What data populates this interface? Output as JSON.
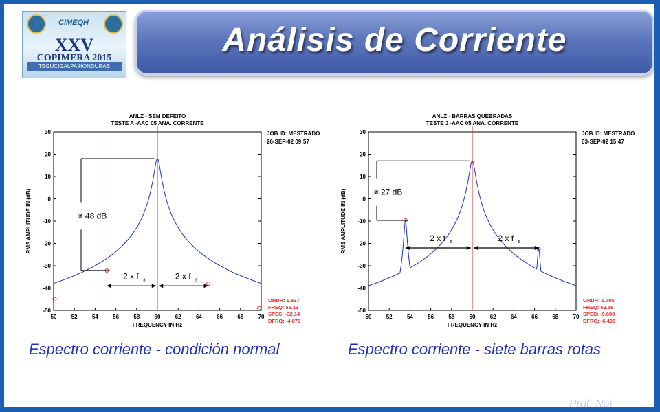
{
  "header": {
    "title": "Análisis de Corriente",
    "logo_text": {
      "brand": "CIMEQH",
      "roman": "XXV",
      "event": "COPIMERA 2015",
      "city": "TEGUCIGALPA HONDURAS"
    }
  },
  "captions": {
    "left": "Espectro corriente - condición normal",
    "right": "Espectro corriente - siete barras rotas"
  },
  "watermark": "Prof. Nai",
  "chart_data": [
    {
      "type": "line",
      "title": "ANLZ - SEM DEFEITO",
      "subtitle": "TESTE A   -AAC   05 ANA. CORRENTE",
      "xlabel": "FREQUENCY IN Hz",
      "ylabel": "RMS AMPLITUDE IN (dB)",
      "xlim": [
        50,
        70
      ],
      "ylim": [
        -50,
        30
      ],
      "xticks": [
        "50",
        "52",
        "54",
        "56",
        "58",
        "60",
        "62",
        "64",
        "66",
        "68",
        "70"
      ],
      "yticks": [
        "30",
        "20",
        "10",
        "0",
        "-10",
        "-20",
        "-30",
        "-40",
        "-50"
      ],
      "job_info": [
        "JOB ID:  MESTRADO",
        "26-SEP-02 09:57"
      ],
      "readout": {
        "ordr": "ORDR:   1.837",
        "freq": "FREQ:   55.13",
        "spec": "SPEC:   -32.14",
        "dfrq": "DFRQ:   -4.875"
      },
      "peaks": [
        {
          "x": 50.1,
          "y": -45
        },
        {
          "x": 55.13,
          "y": -32.1
        },
        {
          "x": 60.0,
          "y": 18.0
        },
        {
          "x": 64.87,
          "y": -37.5
        },
        {
          "x": 69.8,
          "y": -48.6
        }
      ],
      "marker_x": 55.13,
      "markers": [
        {
          "x": 55.13,
          "y": -32.14
        },
        {
          "x": 50.1,
          "y": -45
        },
        {
          "x": 64.9,
          "y": -38
        },
        {
          "x": 69.8,
          "y": -49
        }
      ],
      "annotations": {
        "diff": "≠ 48 dB",
        "twofs_left": "2 x f",
        "twofs_right": "2 x f",
        "sub": "s"
      }
    },
    {
      "type": "line",
      "title": "ANLZ - BARRAS QUEBRADAS",
      "subtitle": "TESTE J   -AAC   05 ANA. CORRENTE",
      "xlabel": "FREQUENCY IN Hz",
      "ylabel": "RMS AMPLITUDE IN (dB)",
      "xlim": [
        50,
        70
      ],
      "ylim": [
        -50,
        30
      ],
      "xticks": [
        "50",
        "52",
        "54",
        "56",
        "58",
        "60",
        "62",
        "64",
        "66",
        "68",
        "70"
      ],
      "yticks": [
        "30",
        "20",
        "10",
        "0",
        "-10",
        "-20",
        "-30",
        "-40",
        "-50"
      ],
      "job_info": [
        "JOB ID:  MESTRADO",
        "03-SEP-02 15:47"
      ],
      "readout": {
        "ordr": "ORDR:   1.785",
        "freq": "FREQ:   53.56",
        "spec": "SPEC:   -9.680",
        "dfrq": "DFRQ:   -6.408"
      },
      "peaks": [
        {
          "x": 53.56,
          "y": -9.7
        },
        {
          "x": 60.0,
          "y": 17.0
        },
        {
          "x": 66.4,
          "y": -22.0
        }
      ],
      "marker_x": 60.0,
      "markers": [
        {
          "x": 53.56,
          "y": -9.68
        },
        {
          "x": 66.4,
          "y": -22.5
        }
      ],
      "annotations": {
        "diff": "≠ 27 dB",
        "twofs_left": "2 x f",
        "twofs_right": "2 x f",
        "sub": "s"
      }
    }
  ]
}
